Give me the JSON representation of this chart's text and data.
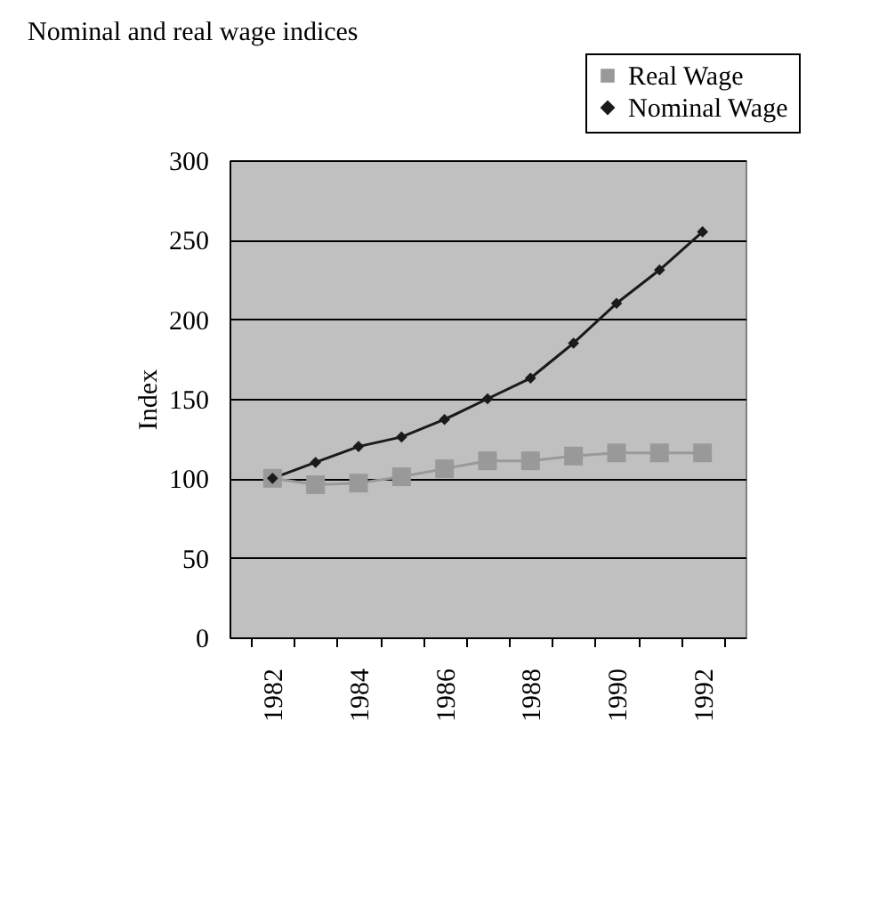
{
  "chart_data": {
    "type": "line",
    "title": "Nominal and real wage indices",
    "ylabel": "Index",
    "categories": [
      "1982",
      null,
      "1984",
      null,
      "1986",
      null,
      "1988",
      null,
      "1990",
      null,
      "1992"
    ],
    "series": [
      {
        "name": "Real Wage",
        "color": "#999999",
        "marker": "square",
        "values": [
          100,
          96,
          97,
          101,
          106,
          111,
          111,
          114,
          116,
          116,
          116
        ]
      },
      {
        "name": "Nominal Wage",
        "color": "#1a1a1a",
        "marker": "diamond",
        "values": [
          100,
          110,
          120,
          126,
          137,
          150,
          163,
          185,
          210,
          231,
          255
        ]
      }
    ],
    "ylim": [
      0,
      300
    ],
    "yticks": [
      0,
      50,
      100,
      150,
      200,
      250,
      300
    ],
    "grid": "y",
    "legend": "top right"
  }
}
